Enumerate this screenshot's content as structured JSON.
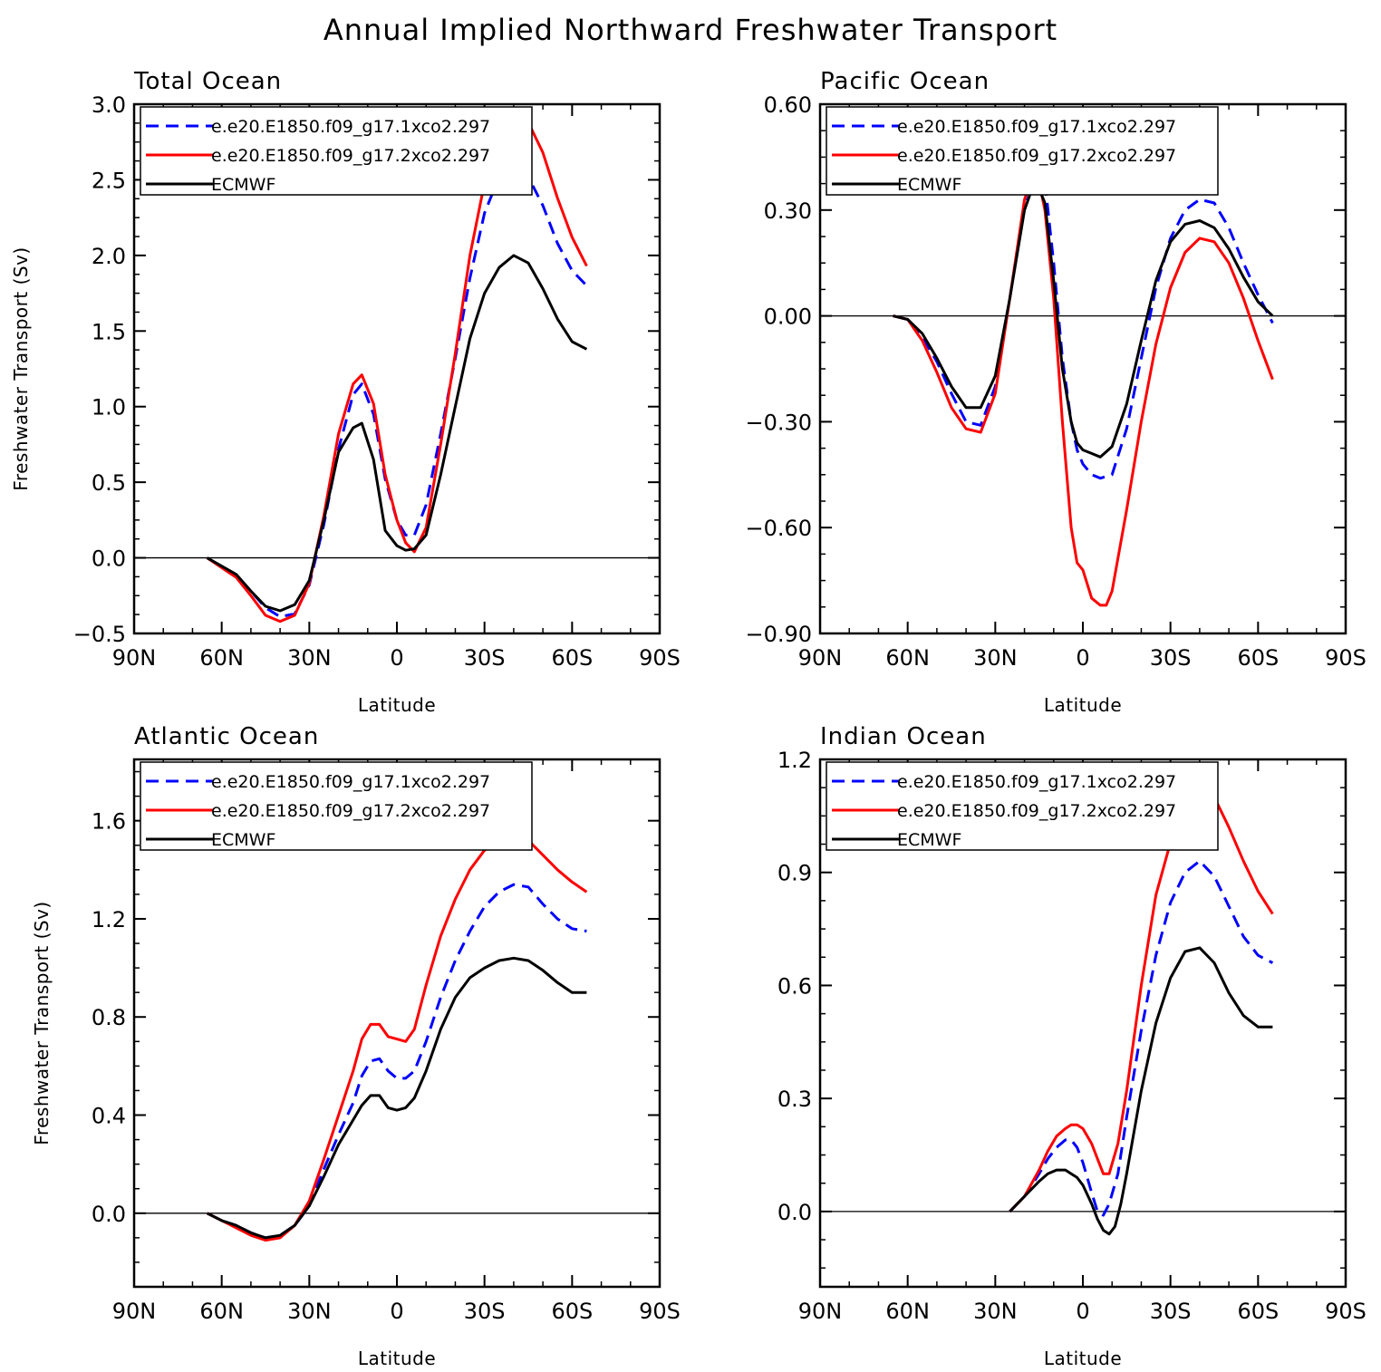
{
  "figure": {
    "title": "Annual Implied Northward Freshwater Transport"
  },
  "colors": {
    "run1": "#0000ff",
    "run2": "#ff0000",
    "obs": "#000000"
  },
  "chart_data": [
    {
      "type": "line",
      "title": "Total Ocean",
      "xlabel": "Latitude",
      "ylabel": "Freshwater Transport (Sv)",
      "xlim": [
        90,
        -90
      ],
      "xticks": [
        90,
        60,
        30,
        0,
        -30,
        -60,
        -90
      ],
      "xtick_labels": [
        "90N",
        "60N",
        "30N",
        "0",
        "30S",
        "60S",
        "90S"
      ],
      "ylim": [
        -0.5,
        3.0
      ],
      "yticks": [
        -0.5,
        0.0,
        0.5,
        1.0,
        1.5,
        2.0,
        2.5,
        3.0
      ],
      "ytick_labels": [
        "−0.5",
        "0.0",
        "0.5",
        "1.0",
        "1.5",
        "2.0",
        "2.5",
        "3.0"
      ],
      "legend": "top-left",
      "series": [
        {
          "name": "e.e20.E1850.f09_g17.1xco2.297",
          "style": "dashed",
          "color": "#0000ff",
          "x": [
            65,
            55,
            50,
            45,
            40,
            35,
            30,
            25,
            20,
            15,
            12,
            8,
            4,
            0,
            -3,
            -6,
            -10,
            -15,
            -20,
            -25,
            -30,
            -35,
            -40,
            -45,
            -50,
            -55,
            -60,
            -65
          ],
          "y": [
            0.0,
            -0.12,
            -0.22,
            -0.33,
            -0.39,
            -0.37,
            -0.18,
            0.22,
            0.72,
            1.08,
            1.15,
            0.95,
            0.52,
            0.25,
            0.15,
            0.15,
            0.35,
            0.82,
            1.32,
            1.85,
            2.28,
            2.52,
            2.61,
            2.52,
            2.33,
            2.08,
            1.9,
            1.8
          ]
        },
        {
          "name": "e.e20.E1850.f09_g17.2xco2.297",
          "style": "solid",
          "color": "#ff0000",
          "x": [
            65,
            55,
            50,
            45,
            40,
            35,
            30,
            25,
            20,
            15,
            12,
            8,
            4,
            0,
            -3,
            -6,
            -10,
            -15,
            -20,
            -25,
            -30,
            -35,
            -40,
            -45,
            -50,
            -55,
            -60,
            -65
          ],
          "y": [
            0.0,
            -0.13,
            -0.25,
            -0.38,
            -0.42,
            -0.38,
            -0.17,
            0.28,
            0.82,
            1.15,
            1.21,
            1.02,
            0.55,
            0.25,
            0.1,
            0.04,
            0.2,
            0.75,
            1.35,
            2.0,
            2.48,
            2.75,
            2.88,
            2.88,
            2.68,
            2.38,
            2.12,
            1.93
          ]
        },
        {
          "name": "ECMWF",
          "style": "solid",
          "color": "#000000",
          "x": [
            65,
            55,
            50,
            45,
            40,
            35,
            30,
            25,
            20,
            15,
            12,
            8,
            4,
            0,
            -3,
            -6,
            -10,
            -15,
            -20,
            -25,
            -30,
            -35,
            -40,
            -45,
            -50,
            -55,
            -60,
            -65
          ],
          "y": [
            0.0,
            -0.11,
            -0.22,
            -0.32,
            -0.35,
            -0.31,
            -0.15,
            0.25,
            0.7,
            0.86,
            0.89,
            0.65,
            0.18,
            0.08,
            0.05,
            0.06,
            0.15,
            0.55,
            1.0,
            1.45,
            1.75,
            1.92,
            2.0,
            1.95,
            1.78,
            1.58,
            1.43,
            1.38
          ]
        }
      ]
    },
    {
      "type": "line",
      "title": "Pacific Ocean",
      "xlabel": "Latitude",
      "ylabel": "",
      "xlim": [
        90,
        -90
      ],
      "xticks": [
        90,
        60,
        30,
        0,
        -30,
        -60,
        -90
      ],
      "xtick_labels": [
        "90N",
        "60N",
        "30N",
        "0",
        "30S",
        "60S",
        "90S"
      ],
      "ylim": [
        -0.9,
        0.6
      ],
      "yticks": [
        -0.9,
        -0.6,
        -0.3,
        0.0,
        0.3,
        0.6
      ],
      "ytick_labels": [
        "−0.90",
        "−0.60",
        "−0.30",
        "0.00",
        "0.30",
        "0.60"
      ],
      "legend": "top-left",
      "series": [
        {
          "name": "e.e20.E1850.f09_g17.1xco2.297",
          "style": "dashed",
          "color": "#0000ff",
          "x": [
            65,
            60,
            55,
            50,
            45,
            40,
            35,
            30,
            25,
            20,
            17,
            15,
            13,
            10,
            7,
            4,
            2,
            0,
            -3,
            -6,
            -10,
            -15,
            -20,
            -25,
            -30,
            -35,
            -40,
            -45,
            -50,
            -55,
            -60,
            -65
          ],
          "y": [
            0.0,
            -0.01,
            -0.06,
            -0.13,
            -0.22,
            -0.3,
            -0.31,
            -0.2,
            0.05,
            0.32,
            0.42,
            0.43,
            0.38,
            0.15,
            -0.12,
            -0.3,
            -0.38,
            -0.42,
            -0.45,
            -0.46,
            -0.45,
            -0.32,
            -0.12,
            0.08,
            0.22,
            0.3,
            0.33,
            0.32,
            0.25,
            0.15,
            0.06,
            -0.02
          ]
        },
        {
          "name": "e.e20.E1850.f09_g17.2xco2.297",
          "style": "solid",
          "color": "#ff0000",
          "x": [
            65,
            60,
            55,
            50,
            45,
            40,
            35,
            30,
            25,
            20,
            17,
            15,
            13,
            10,
            7,
            4,
            2,
            0,
            -3,
            -6,
            -8,
            -10,
            -15,
            -20,
            -25,
            -30,
            -35,
            -40,
            -45,
            -50,
            -55,
            -60,
            -65
          ],
          "y": [
            0.0,
            -0.01,
            -0.07,
            -0.16,
            -0.26,
            -0.32,
            -0.33,
            -0.22,
            0.05,
            0.33,
            0.4,
            0.38,
            0.3,
            0.05,
            -0.3,
            -0.6,
            -0.7,
            -0.72,
            -0.8,
            -0.82,
            -0.82,
            -0.78,
            -0.55,
            -0.3,
            -0.08,
            0.08,
            0.18,
            0.22,
            0.21,
            0.15,
            0.05,
            -0.07,
            -0.18
          ]
        },
        {
          "name": "ECMWF",
          "style": "solid",
          "color": "#000000",
          "x": [
            65,
            60,
            55,
            50,
            45,
            40,
            35,
            30,
            25,
            20,
            17,
            15,
            13,
            10,
            7,
            4,
            2,
            0,
            -3,
            -6,
            -10,
            -15,
            -20,
            -25,
            -30,
            -35,
            -40,
            -45,
            -50,
            -55,
            -60,
            -65
          ],
          "y": [
            0.0,
            -0.01,
            -0.05,
            -0.12,
            -0.2,
            -0.26,
            -0.26,
            -0.17,
            0.05,
            0.3,
            0.37,
            0.36,
            0.32,
            0.1,
            -0.15,
            -0.3,
            -0.36,
            -0.38,
            -0.39,
            -0.4,
            -0.37,
            -0.25,
            -0.07,
            0.1,
            0.21,
            0.26,
            0.27,
            0.25,
            0.19,
            0.11,
            0.04,
            0.0
          ]
        }
      ]
    },
    {
      "type": "line",
      "title": "Atlantic Ocean",
      "xlabel": "Latitude",
      "ylabel": "Freshwater Transport (Sv)",
      "xlim": [
        90,
        -90
      ],
      "xticks": [
        90,
        60,
        30,
        0,
        -30,
        -60,
        -90
      ],
      "xtick_labels": [
        "90N",
        "60N",
        "30N",
        "0",
        "30S",
        "60S",
        "90S"
      ],
      "ylim": [
        -0.3,
        1.85
      ],
      "yticks": [
        0.0,
        0.4,
        0.8,
        1.2,
        1.6
      ],
      "ytick_labels": [
        "0.0",
        "0.4",
        "0.8",
        "1.2",
        "1.6"
      ],
      "legend": "top-left",
      "series": [
        {
          "name": "e.e20.E1850.f09_g17.1xco2.297",
          "style": "dashed",
          "color": "#0000ff",
          "x": [
            65,
            60,
            55,
            50,
            45,
            40,
            35,
            30,
            25,
            20,
            15,
            12,
            9,
            6,
            3,
            0,
            -3,
            -6,
            -10,
            -15,
            -20,
            -25,
            -30,
            -35,
            -40,
            -45,
            -50,
            -55,
            -60,
            -65
          ],
          "y": [
            0.0,
            -0.03,
            -0.05,
            -0.08,
            -0.1,
            -0.09,
            -0.05,
            0.03,
            0.18,
            0.32,
            0.45,
            0.56,
            0.62,
            0.63,
            0.58,
            0.55,
            0.55,
            0.58,
            0.7,
            0.88,
            1.03,
            1.15,
            1.25,
            1.31,
            1.34,
            1.33,
            1.26,
            1.2,
            1.16,
            1.15
          ]
        },
        {
          "name": "e.e20.E1850.f09_g17.2xco2.297",
          "style": "solid",
          "color": "#ff0000",
          "x": [
            65,
            60,
            55,
            50,
            45,
            40,
            35,
            30,
            25,
            20,
            15,
            12,
            9,
            6,
            3,
            0,
            -3,
            -6,
            -10,
            -15,
            -20,
            -25,
            -30,
            -35,
            -40,
            -45,
            -50,
            -55,
            -60,
            -65
          ],
          "y": [
            0.0,
            -0.03,
            -0.06,
            -0.09,
            -0.11,
            -0.1,
            -0.05,
            0.05,
            0.22,
            0.4,
            0.58,
            0.71,
            0.77,
            0.77,
            0.72,
            0.71,
            0.7,
            0.75,
            0.93,
            1.13,
            1.28,
            1.4,
            1.48,
            1.52,
            1.55,
            1.52,
            1.46,
            1.4,
            1.35,
            1.31
          ]
        },
        {
          "name": "ECMWF",
          "style": "solid",
          "color": "#000000",
          "x": [
            65,
            60,
            55,
            50,
            45,
            40,
            35,
            30,
            25,
            20,
            15,
            12,
            9,
            6,
            3,
            0,
            -3,
            -6,
            -10,
            -15,
            -20,
            -25,
            -30,
            -35,
            -40,
            -45,
            -50,
            -55,
            -60,
            -65
          ],
          "y": [
            0.0,
            -0.03,
            -0.05,
            -0.08,
            -0.1,
            -0.09,
            -0.05,
            0.03,
            0.15,
            0.28,
            0.38,
            0.44,
            0.48,
            0.48,
            0.43,
            0.42,
            0.43,
            0.47,
            0.58,
            0.75,
            0.88,
            0.96,
            1.0,
            1.03,
            1.04,
            1.03,
            0.99,
            0.94,
            0.9,
            0.9
          ]
        }
      ]
    },
    {
      "type": "line",
      "title": "Indian Ocean",
      "xlabel": "Latitude",
      "ylabel": "",
      "xlim": [
        90,
        -90
      ],
      "xticks": [
        90,
        60,
        30,
        0,
        -30,
        -60,
        -90
      ],
      "xtick_labels": [
        "90N",
        "60N",
        "30N",
        "0",
        "30S",
        "60S",
        "90S"
      ],
      "ylim": [
        -0.2,
        1.2
      ],
      "yticks": [
        0.0,
        0.3,
        0.6,
        0.9,
        1.2
      ],
      "ytick_labels": [
        "0.0",
        "0.3",
        "0.6",
        "0.9",
        "1.2"
      ],
      "legend": "top-left",
      "series": [
        {
          "name": "e.e20.E1850.f09_g17.1xco2.297",
          "style": "dashed",
          "color": "#0000ff",
          "x": [
            25,
            20,
            15,
            12,
            9,
            6,
            4,
            2,
            0,
            -3,
            -5,
            -7,
            -9,
            -12,
            -15,
            -20,
            -25,
            -30,
            -35,
            -40,
            -45,
            -50,
            -55,
            -60,
            -65
          ],
          "y": [
            0.0,
            0.04,
            0.1,
            0.14,
            0.17,
            0.19,
            0.19,
            0.17,
            0.13,
            0.05,
            0.0,
            -0.01,
            0.02,
            0.1,
            0.25,
            0.48,
            0.68,
            0.82,
            0.9,
            0.93,
            0.89,
            0.81,
            0.73,
            0.68,
            0.66
          ]
        },
        {
          "name": "e.e20.E1850.f09_g17.2xco2.297",
          "style": "solid",
          "color": "#ff0000",
          "x": [
            25,
            20,
            15,
            12,
            9,
            6,
            4,
            2,
            0,
            -3,
            -5,
            -7,
            -9,
            -12,
            -15,
            -20,
            -25,
            -30,
            -35,
            -40,
            -45,
            -50,
            -55,
            -60,
            -65
          ],
          "y": [
            0.0,
            0.04,
            0.11,
            0.16,
            0.2,
            0.22,
            0.23,
            0.23,
            0.22,
            0.18,
            0.14,
            0.1,
            0.1,
            0.18,
            0.32,
            0.6,
            0.84,
            0.98,
            1.08,
            1.12,
            1.1,
            1.02,
            0.93,
            0.85,
            0.79
          ]
        },
        {
          "name": "ECMWF",
          "style": "solid",
          "color": "#000000",
          "x": [
            25,
            20,
            15,
            12,
            9,
            6,
            4,
            2,
            0,
            -3,
            -5,
            -7,
            -9,
            -11,
            -13,
            -15,
            -20,
            -25,
            -30,
            -35,
            -40,
            -45,
            -50,
            -55,
            -60,
            -65
          ],
          "y": [
            0.0,
            0.04,
            0.08,
            0.1,
            0.11,
            0.11,
            0.1,
            0.09,
            0.07,
            0.02,
            -0.02,
            -0.05,
            -0.06,
            -0.04,
            0.02,
            0.1,
            0.32,
            0.5,
            0.62,
            0.69,
            0.7,
            0.66,
            0.58,
            0.52,
            0.49,
            0.49
          ]
        }
      ]
    }
  ]
}
